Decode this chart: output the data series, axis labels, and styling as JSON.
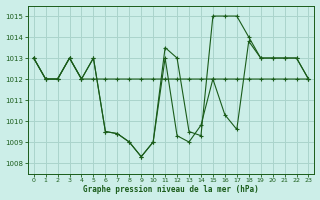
{
  "title": "Graphe pression niveau de la mer (hPa)",
  "bg_color": "#cceee8",
  "grid_color": "#aad4cc",
  "line_color": "#1a5c1a",
  "xlim": [
    -0.5,
    23.5
  ],
  "ylim": [
    1007.5,
    1015.5
  ],
  "yticks": [
    1008,
    1009,
    1010,
    1011,
    1012,
    1013,
    1014,
    1015
  ],
  "xticks": [
    0,
    1,
    2,
    3,
    4,
    5,
    6,
    7,
    8,
    9,
    10,
    11,
    12,
    13,
    14,
    15,
    16,
    17,
    18,
    19,
    20,
    21,
    22,
    23
  ],
  "series": [
    [
      1013.0,
      1012.0,
      1012.0,
      1013.0,
      1012.0,
      1012.0,
      1012.0,
      1012.0,
      1012.0,
      1012.0,
      1012.0,
      1012.0,
      1012.0,
      1012.0,
      1012.0,
      1012.0,
      1012.0,
      1012.0,
      1012.0,
      1012.0,
      1012.0,
      1012.0,
      1012.0,
      1012.0
    ],
    [
      1013.0,
      1012.0,
      1012.0,
      1013.0,
      1012.0,
      1013.0,
      1009.5,
      1009.4,
      1009.0,
      1008.3,
      1009.0,
      1013.5,
      1013.0,
      1009.5,
      1009.3,
      1015.0,
      1015.0,
      1015.0,
      1014.0,
      1013.0,
      1013.0,
      1013.0,
      1013.0,
      1012.0
    ],
    [
      1013.0,
      1012.0,
      1012.0,
      1013.0,
      1012.0,
      1013.0,
      1009.5,
      1009.4,
      1009.0,
      1008.3,
      1009.0,
      1013.0,
      1009.3,
      1009.0,
      1009.8,
      1012.0,
      1010.3,
      1009.6,
      1013.8,
      1013.0,
      1013.0,
      1013.0,
      1013.0,
      1012.0
    ]
  ]
}
